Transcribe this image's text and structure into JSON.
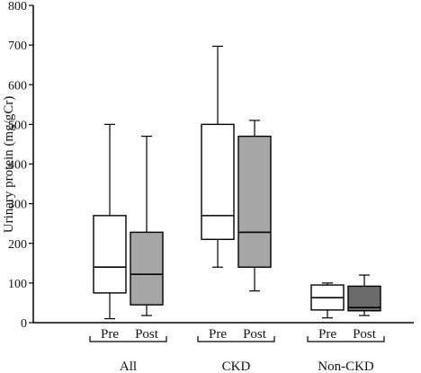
{
  "chart_data": {
    "type": "box",
    "title": "",
    "xlabel": "",
    "ylabel": "Urinary protein (mg/gCr)",
    "ylim": [
      0,
      800
    ],
    "yticks": [
      0,
      100,
      200,
      300,
      400,
      500,
      600,
      700,
      800
    ],
    "grid": false,
    "groups": [
      {
        "name": "All",
        "boxes": [
          {
            "label": "Pre",
            "min": 10,
            "q1": 75,
            "median": 140,
            "q3": 270,
            "max": 500,
            "fill": "#ffffff"
          },
          {
            "label": "Post",
            "min": 18,
            "q1": 45,
            "median": 122,
            "q3": 228,
            "max": 470,
            "fill": "#a6a6a6"
          }
        ]
      },
      {
        "name": "CKD",
        "boxes": [
          {
            "label": "Pre",
            "min": 140,
            "q1": 210,
            "median": 270,
            "q3": 500,
            "max": 697,
            "fill": "#ffffff"
          },
          {
            "label": "Post",
            "min": 80,
            "q1": 140,
            "median": 228,
            "q3": 470,
            "max": 510,
            "fill": "#a6a6a6"
          }
        ]
      },
      {
        "name": "Non-CKD",
        "boxes": [
          {
            "label": "Pre",
            "min": 12,
            "q1": 32,
            "median": 63,
            "q3": 95,
            "max": 100,
            "fill": "#ffffff"
          },
          {
            "label": "Post",
            "min": 18,
            "q1": 30,
            "median": 38,
            "q3": 92,
            "max": 120,
            "fill": "#6b6b6b"
          }
        ]
      }
    ]
  }
}
